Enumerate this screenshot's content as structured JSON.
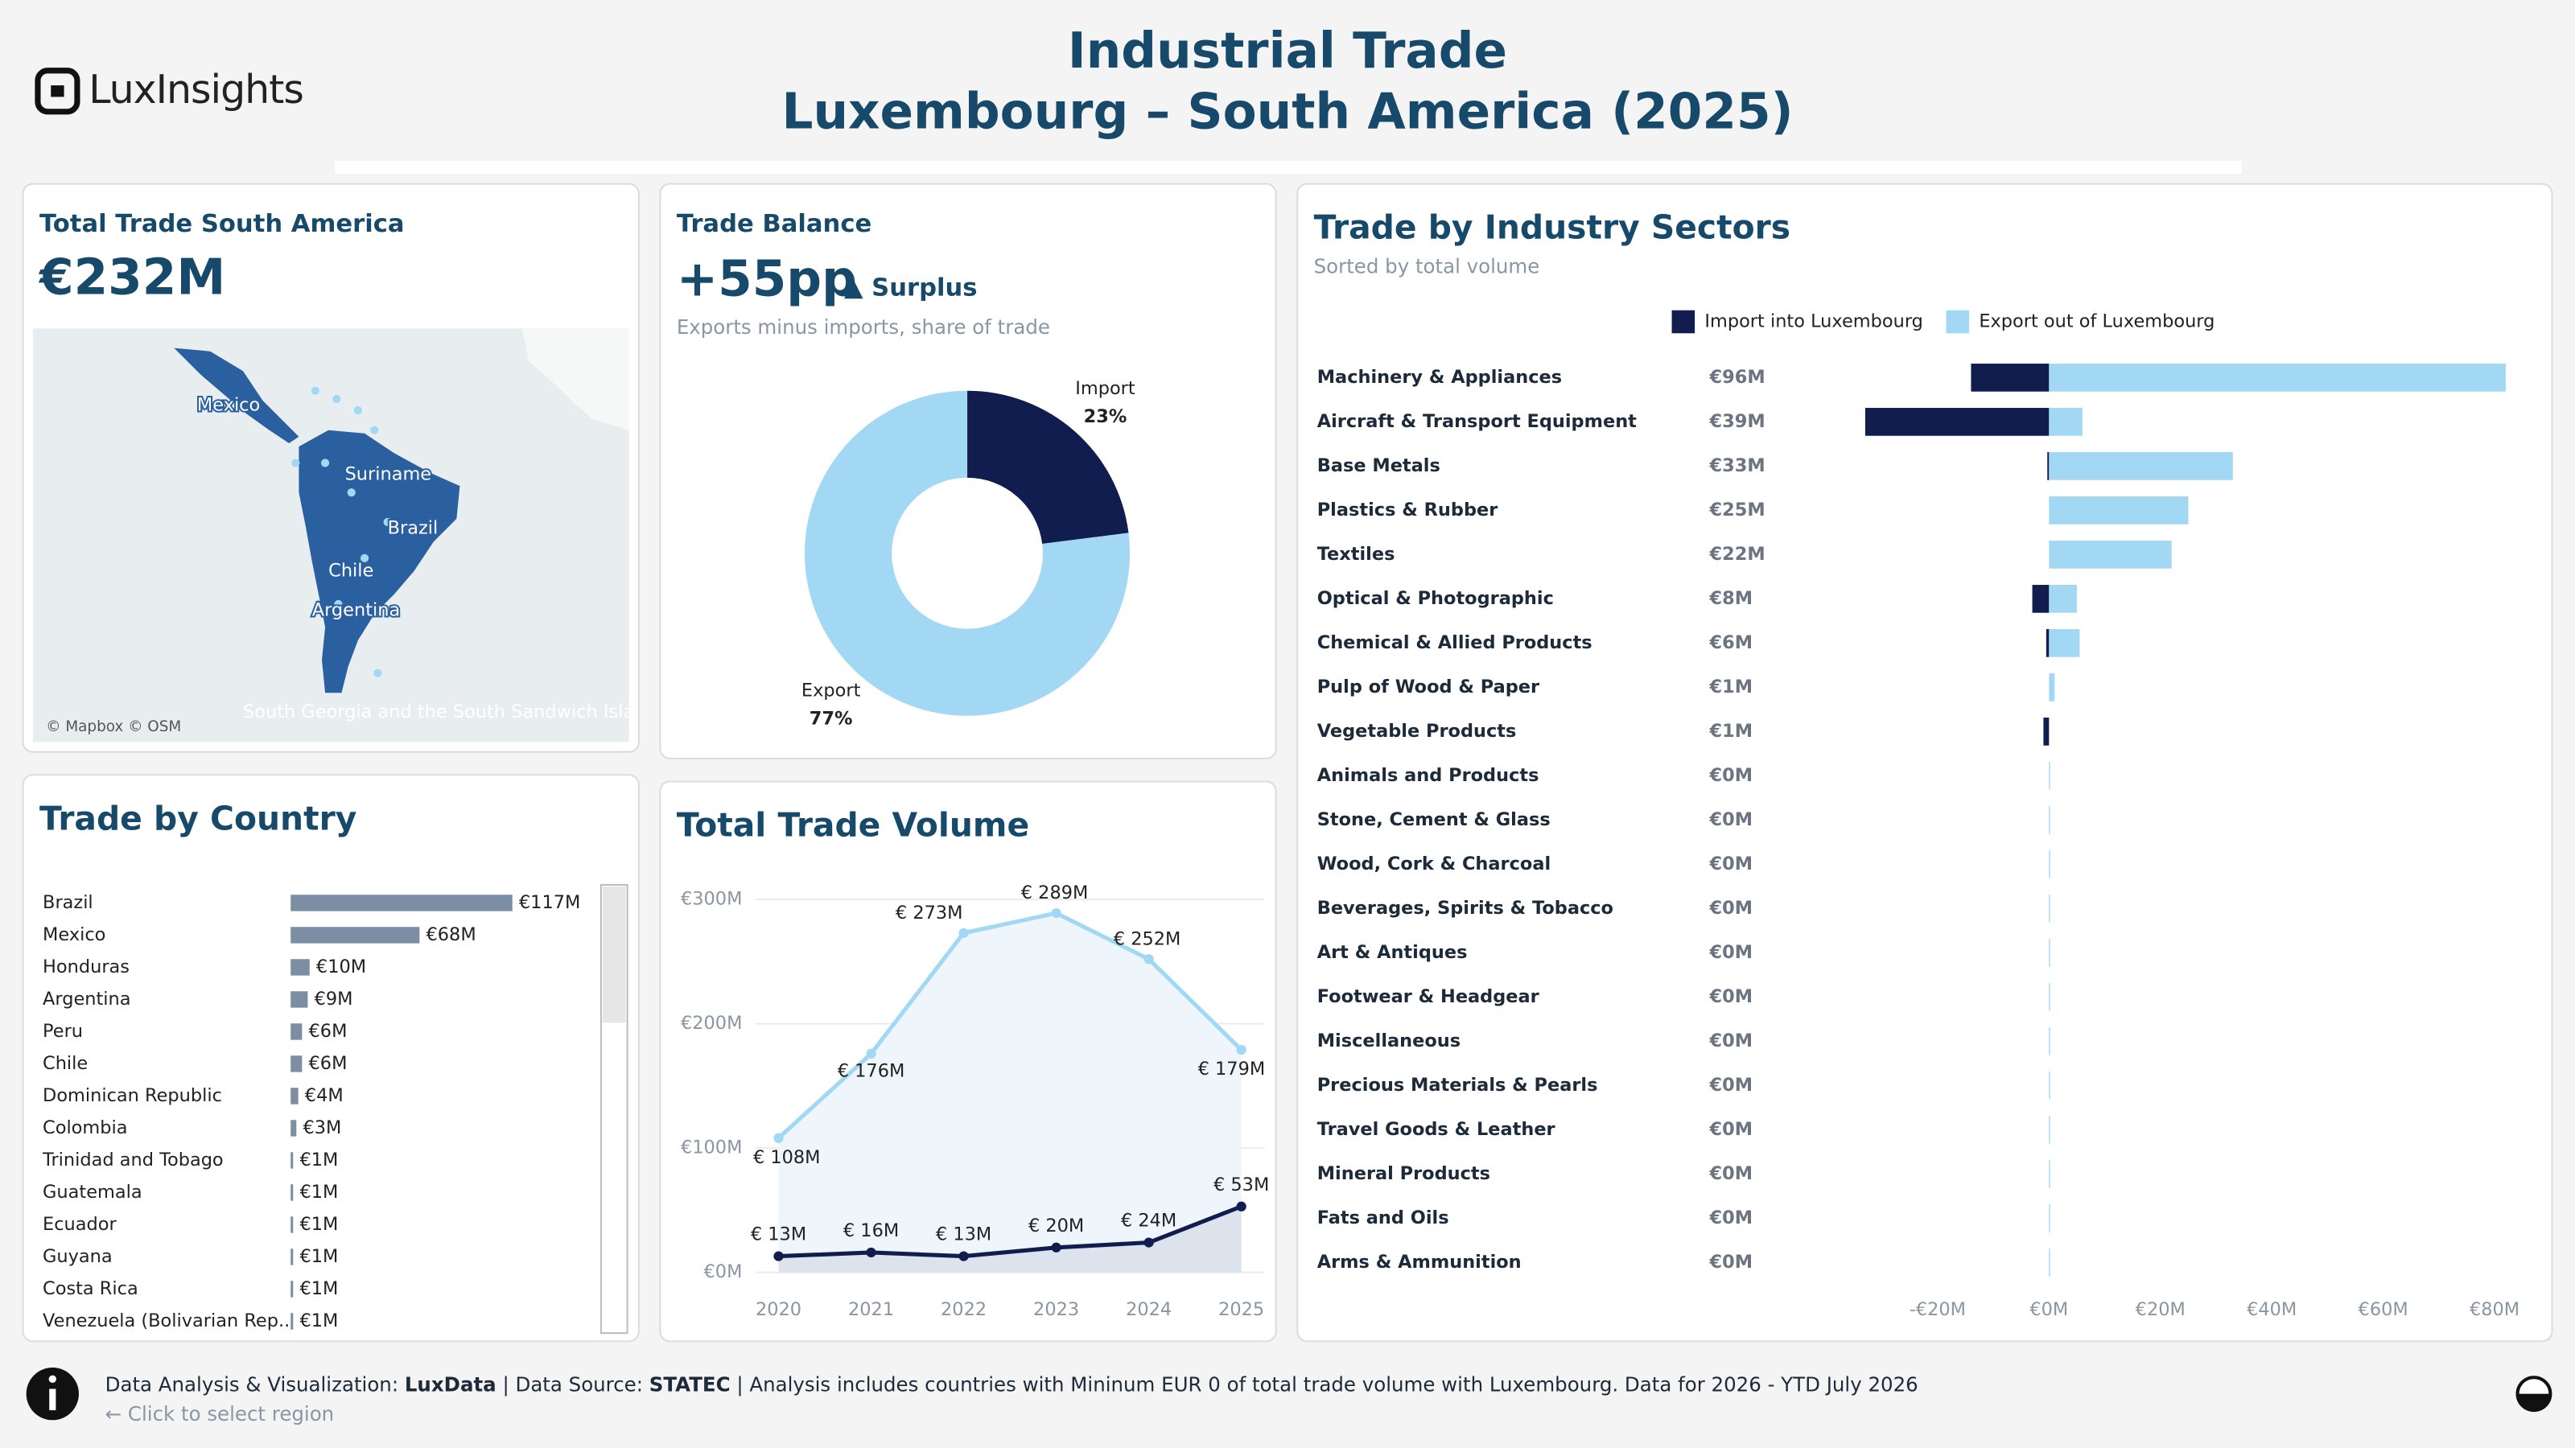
{
  "header": {
    "logo": "LuxInsights",
    "title": "Industrial Trade",
    "subtitle": "Luxembourg – South America (2025)"
  },
  "kpis": {
    "total": {
      "title": "Total Trade South America",
      "value": "€232M"
    },
    "balance": {
      "title": "Trade Balance",
      "value": "+55pp",
      "status": "▲ Surplus",
      "note": "Exports minus imports, share of trade"
    }
  },
  "map": {
    "labels": [
      "Mexico",
      "Suriname",
      "Brazil",
      "Chile",
      "Argentina",
      "South Georgia and the South Sandwich Isla"
    ],
    "credit": "© Mapbox © OSM"
  },
  "chart_data": [
    {
      "type": "pie",
      "categories": [
        "Import",
        "Export"
      ],
      "values": [
        23,
        77
      ],
      "value_labels": [
        "23%",
        "77%"
      ],
      "colors": [
        "#111d4f",
        "#a3d8f4"
      ]
    },
    {
      "type": "bar",
      "orientation": "horizontal",
      "title": "Trade by Country",
      "categories": [
        "Brazil",
        "Mexico",
        "Honduras",
        "Argentina",
        "Peru",
        "Chile",
        "Dominican Republic",
        "Colombia",
        "Trinidad and Tobago",
        "Guatemala",
        "Ecuador",
        "Guyana",
        "Costa Rica",
        "Venezuela (Bolivarian Rep.."
      ],
      "values": [
        117,
        68,
        10,
        9,
        6,
        6,
        4,
        3,
        1,
        1,
        1,
        1,
        1,
        1
      ],
      "value_labels": [
        "€117M",
        "€68M",
        "€10M",
        "€9M",
        "€6M",
        "€6M",
        "€4M",
        "€3M",
        "€1M",
        "€1M",
        "€1M",
        "€1M",
        "€1M",
        "€1M"
      ],
      "color": "#7b8ea3"
    },
    {
      "type": "line",
      "title": "Total Trade Volume",
      "x": [
        2020,
        2021,
        2022,
        2023,
        2024,
        2025
      ],
      "xlim": [
        2019.75,
        2025.25
      ],
      "xticks": [
        2020,
        2021,
        2022,
        2023,
        2024,
        2025
      ],
      "ylim": [
        -10,
        310
      ],
      "yticks": [
        {
          "value": 0,
          "label": "€0M"
        },
        {
          "value": 100,
          "label": "€100M"
        },
        {
          "value": 200,
          "label": "€200M"
        },
        {
          "value": 300,
          "label": "€300M"
        }
      ],
      "grid": true,
      "series": [
        {
          "color": "#a3d8f4",
          "area": "#eef5fb",
          "values": [
            108,
            176,
            273,
            289,
            252,
            179
          ],
          "value_labels": [
            "€ 108M",
            "€ 176M",
            "€ 273M",
            "€ 289M",
            "€ 252M",
            "€ 179M"
          ]
        },
        {
          "color": "#111d4f",
          "area": "#dde3ec",
          "values": [
            13,
            16,
            13,
            20,
            24,
            53
          ],
          "value_labels": [
            "€ 13M",
            "€ 16M",
            "€ 13M",
            "€ 20M",
            "€ 24M",
            "€ 53M"
          ]
        }
      ]
    },
    {
      "type": "bar",
      "orientation": "horizontal",
      "title": "Trade by Industry Sectors",
      "subtitle": "Sorted by total volume",
      "legend": "top",
      "categories": [
        "Machinery & Appliances",
        "Aircraft & Transport Equipment",
        "Base Metals",
        "Plastics & Rubber",
        "Textiles",
        "Optical & Photographic",
        "Chemical & Allied Products",
        "Pulp of Wood & Paper",
        "Vegetable Products",
        "Animals and Products",
        "Stone, Cement & Glass",
        "Wood, Cork & Charcoal",
        "Beverages, Spirits & Tobacco",
        "Art & Antiques",
        "Footwear & Headgear",
        "Miscellaneous",
        "Precious Materials & Pearls",
        "Travel Goods & Leather",
        "Mineral Products",
        "Fats and Oils",
        "Arms & Ammunition"
      ],
      "total_labels": [
        "€96M",
        "€39M",
        "€33M",
        "€25M",
        "€22M",
        "€8M",
        "€6M",
        "€1M",
        "€1M",
        "€0M",
        "€0M",
        "€0M",
        "€0M",
        "€0M",
        "€0M",
        "€0M",
        "€0M",
        "€0M",
        "€0M",
        "€0M",
        "€0M"
      ],
      "series": [
        {
          "name": "Import into Luxembourg",
          "color": "#111d4f",
          "values": [
            -14,
            -33,
            -0.3,
            0,
            0,
            -3,
            -0.5,
            0,
            -1,
            0,
            0,
            0,
            0,
            0,
            0,
            0,
            0,
            0,
            0,
            0,
            0
          ]
        },
        {
          "name": "Export out of Luxembourg",
          "color": "#a3d8f4",
          "values": [
            82,
            6,
            33,
            25,
            22,
            5,
            5.5,
            1,
            0,
            0.2,
            0.2,
            0.2,
            0.2,
            0.2,
            0.2,
            0.2,
            0.2,
            0.2,
            0.2,
            0.2,
            0.2
          ]
        }
      ],
      "xlim": [
        -35,
        85
      ],
      "xticks": [
        {
          "value": -20,
          "label": "-€20M"
        },
        {
          "value": 0,
          "label": "€0M"
        },
        {
          "value": 20,
          "label": "€20M"
        },
        {
          "value": 40,
          "label": "€40M"
        },
        {
          "value": 60,
          "label": "€60M"
        },
        {
          "value": 80,
          "label": "€80M"
        }
      ]
    }
  ],
  "footer": {
    "credit_label": "Data Analysis & Visualization: ",
    "credit": "LuxData",
    "source_label": " | Data Source: ",
    "source": "STATEC",
    "note": " | Analysis includes countries with Mininum EUR 0 of total trade volume with Luxembourg. Data for 2026 - YTD July 2026",
    "hint": "← Click to select region"
  }
}
